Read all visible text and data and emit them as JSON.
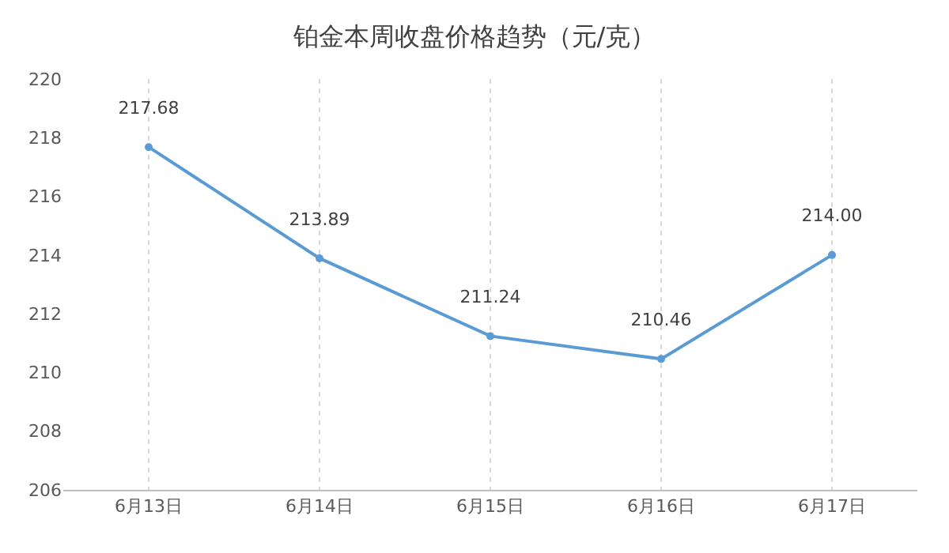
{
  "chart_data": {
    "type": "line",
    "title": "铂金本周收盘价格趋势（元/克）",
    "categories": [
      "6月13日",
      "6月14日",
      "6月15日",
      "6月16日",
      "6月17日"
    ],
    "series": [
      {
        "color": "#5b9bd5",
        "values": [
          217.68,
          213.89,
          211.24,
          210.46,
          214.0
        ]
      }
    ],
    "value_labels": [
      "217.68",
      "213.89",
      "211.24",
      "210.46",
      "214.00"
    ],
    "ylim": [
      206,
      220
    ],
    "yticks": [
      206,
      208,
      210,
      212,
      214,
      216,
      218,
      220
    ],
    "grid": "x",
    "marker": "circle",
    "line_style": "solid"
  }
}
